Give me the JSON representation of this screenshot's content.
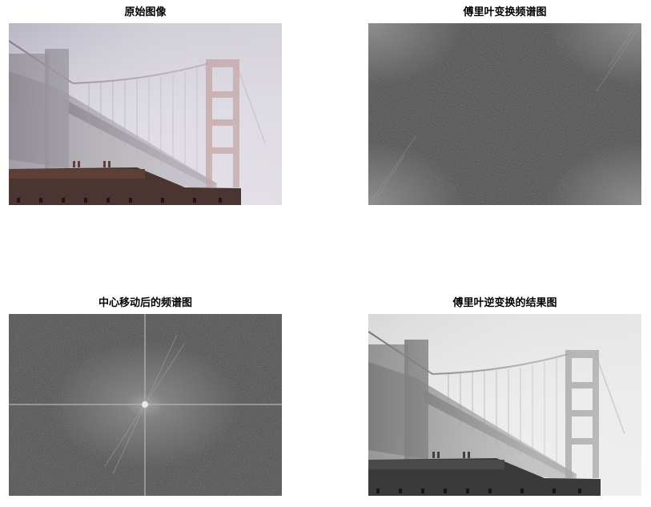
{
  "panels": [
    {
      "title": "原始图像"
    },
    {
      "title": "傅里叶变换频谱图"
    },
    {
      "title": "中心移动后的频谱图"
    },
    {
      "title": "傅里叶逆变换的结果图"
    }
  ]
}
